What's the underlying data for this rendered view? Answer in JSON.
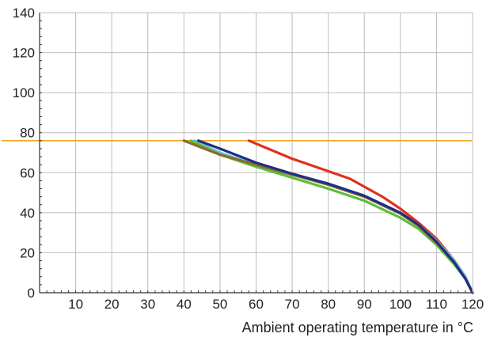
{
  "chart_data": {
    "type": "line",
    "title": "",
    "xlabel": "Ambient operating temperature in °C",
    "ylabel": "",
    "xlim": [
      0,
      120
    ],
    "ylim": [
      0,
      140
    ],
    "x_ticks": [
      10,
      20,
      30,
      40,
      50,
      60,
      70,
      80,
      90,
      100,
      110,
      120
    ],
    "y_ticks": [
      0,
      20,
      40,
      60,
      80,
      100,
      120,
      140
    ],
    "grid": true,
    "legend": "none",
    "reference_line": {
      "y": 76,
      "color": "#f5a623"
    },
    "series": [
      {
        "color": "#e0301e",
        "points": [
          [
            58,
            76
          ],
          [
            62,
            73
          ],
          [
            70,
            67
          ],
          [
            78,
            62
          ],
          [
            86,
            57
          ],
          [
            90,
            53
          ],
          [
            95,
            48
          ],
          [
            100,
            42
          ],
          [
            105,
            35
          ],
          [
            110,
            27
          ],
          [
            115,
            16
          ],
          [
            118,
            8
          ],
          [
            120,
            0
          ]
        ]
      },
      {
        "color": "#6fc3d8",
        "points": [
          [
            43,
            76
          ],
          [
            50,
            70
          ],
          [
            60,
            64
          ],
          [
            70,
            59
          ],
          [
            80,
            54
          ],
          [
            90,
            48
          ],
          [
            100,
            40
          ],
          [
            105,
            34
          ],
          [
            110,
            26
          ],
          [
            115,
            16
          ],
          [
            118,
            8
          ],
          [
            120,
            0
          ]
        ]
      },
      {
        "color": "#5bbf3a",
        "points": [
          [
            42,
            76
          ],
          [
            50,
            69
          ],
          [
            60,
            63
          ],
          [
            70,
            57.5
          ],
          [
            80,
            52
          ],
          [
            90,
            46
          ],
          [
            100,
            37.5
          ],
          [
            105,
            32
          ],
          [
            110,
            24
          ],
          [
            115,
            14
          ],
          [
            118,
            7
          ],
          [
            120,
            0
          ]
        ]
      },
      {
        "color": "#8b6a2b",
        "points": [
          [
            40,
            76
          ],
          [
            50,
            69
          ],
          [
            60,
            64
          ],
          [
            70,
            59
          ],
          [
            80,
            54
          ],
          [
            90,
            48
          ],
          [
            100,
            39.5
          ],
          [
            105,
            33.5
          ],
          [
            110,
            25
          ],
          [
            115,
            15
          ],
          [
            118,
            7
          ],
          [
            120,
            0
          ]
        ]
      },
      {
        "color": "#1f2d86",
        "points": [
          [
            44,
            76
          ],
          [
            50,
            72
          ],
          [
            60,
            65
          ],
          [
            70,
            59.5
          ],
          [
            80,
            54.5
          ],
          [
            90,
            48.5
          ],
          [
            100,
            40
          ],
          [
            105,
            34
          ],
          [
            110,
            25.5
          ],
          [
            115,
            15
          ],
          [
            118,
            7
          ],
          [
            120,
            0
          ]
        ]
      }
    ]
  }
}
